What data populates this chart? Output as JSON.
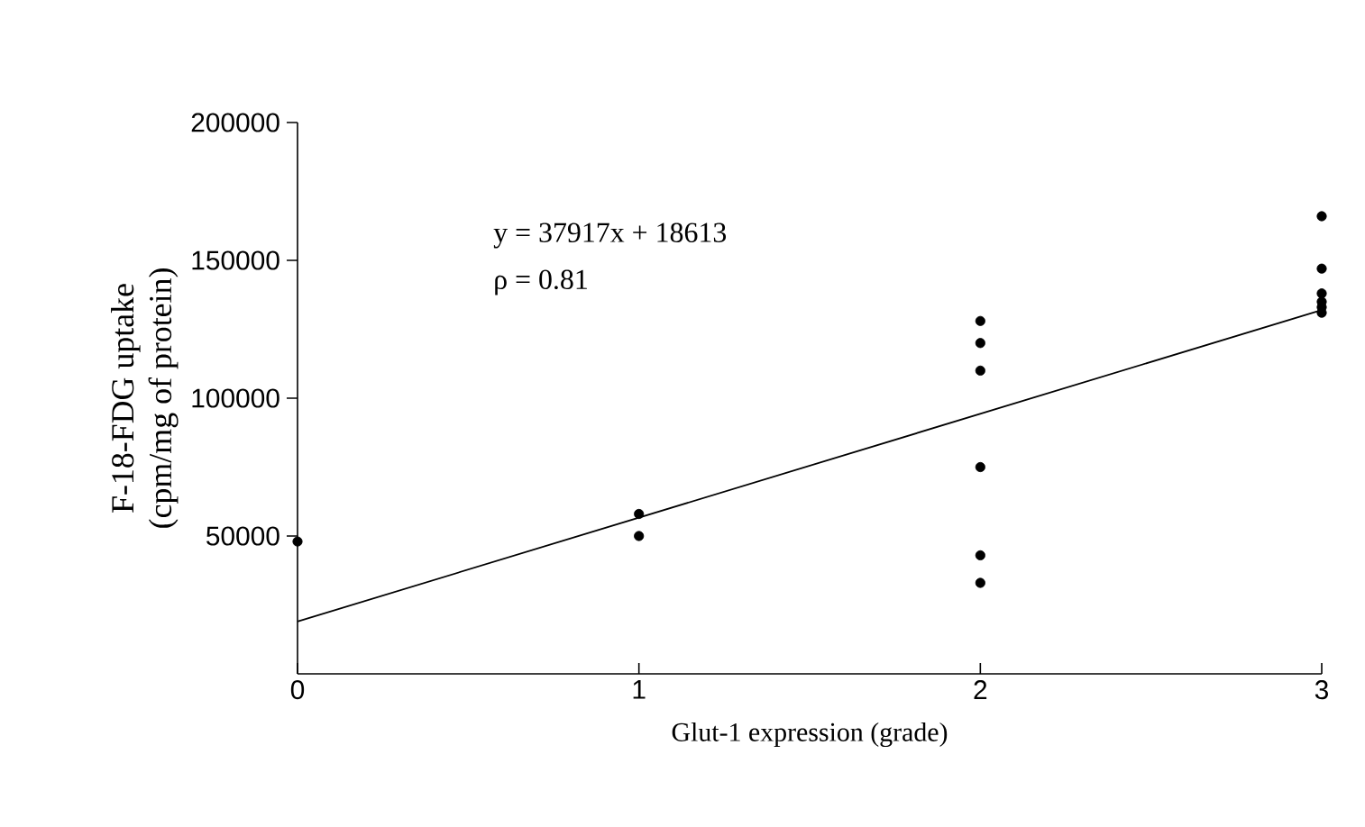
{
  "chart_data": {
    "type": "scatter",
    "xlabel": "Glut-1 expression (grade)",
    "ylabel": "F-18-FDG uptake (cpm/mg of protein)",
    "annotations": [
      "y = 37917x + 18613",
      "ρ = 0.81"
    ],
    "xlim": [
      0,
      3
    ],
    "xticks": [
      0,
      1,
      2,
      3
    ],
    "ylim": [
      0,
      200000
    ],
    "yticks": [
      50000,
      100000,
      150000,
      200000
    ],
    "series": [
      {
        "marker": "circle",
        "color": "#000000",
        "x": [
          0,
          1,
          1,
          2,
          2,
          2,
          2,
          2,
          2,
          3,
          3,
          3,
          3,
          3,
          3
        ],
        "values": [
          48000,
          58000,
          50000,
          128000,
          120000,
          110000,
          75000,
          43000,
          33000,
          166000,
          147000,
          138000,
          135000,
          133000,
          131000
        ]
      },
      {
        "type": "line",
        "color": "#000000",
        "x": [
          0,
          3
        ],
        "values": [
          19000,
          132000
        ]
      }
    ]
  }
}
